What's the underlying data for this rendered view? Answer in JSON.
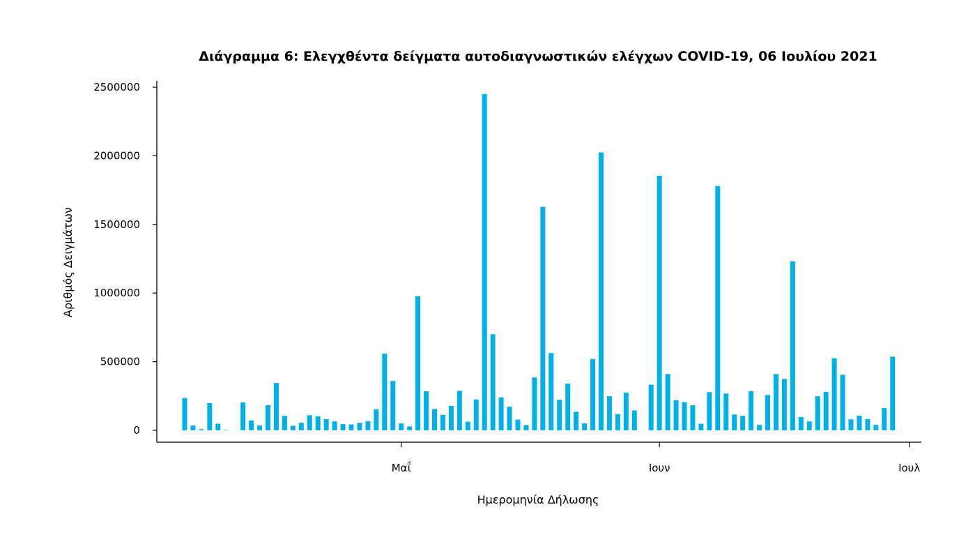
{
  "chart_data": {
    "type": "bar",
    "title": "Διάγραμμα 6: Ελεγχθέντα δείγματα αυτοδιαγνωστικών ελέγχων COVID-19, 06 Ιουλίου 2021",
    "xlabel": "Ημερομηνία Δήλωσης",
    "ylabel": "Αριθμός Δειγμάτων",
    "ylim": [
      0,
      2500000
    ],
    "yticks": [
      "0",
      "500000",
      "1000000",
      "1500000",
      "2000000",
      "2500000"
    ],
    "x_start": "2021-04-05",
    "x_end": "2021-07-06",
    "xticks": [
      {
        "label": "Μαΐ",
        "date": "2021-05-01"
      },
      {
        "label": "Ιουν",
        "date": "2021-06-01"
      },
      {
        "label": "Ιουλ",
        "date": "2021-07-01"
      }
    ],
    "bar_color": "#00b0e8",
    "grid": false,
    "legend": "none",
    "values": [
      235000,
      35000,
      8000,
      198000,
      48000,
      3000,
      0,
      203000,
      72000,
      35000,
      183000,
      345000,
      105000,
      33000,
      55000,
      110000,
      103000,
      82000,
      65000,
      45000,
      43000,
      55000,
      67000,
      153000,
      558000,
      360000,
      50000,
      28000,
      978000,
      285000,
      155000,
      113000,
      178000,
      288000,
      63000,
      225000,
      2450000,
      700000,
      240000,
      172000,
      78000,
      38000,
      385000,
      1628000,
      563000,
      222000,
      340000,
      135000,
      50000,
      520000,
      2025000,
      248000,
      118000,
      275000,
      145000,
      0,
      333000,
      1855000,
      410000,
      220000,
      205000,
      183000,
      48000,
      278000,
      1780000,
      268000,
      115000,
      105000,
      285000,
      40000,
      258000,
      410000,
      375000,
      1232000,
      97000,
      65000,
      248000,
      280000,
      525000,
      405000,
      80000,
      107000,
      82000,
      40000,
      163000,
      537000
    ]
  }
}
